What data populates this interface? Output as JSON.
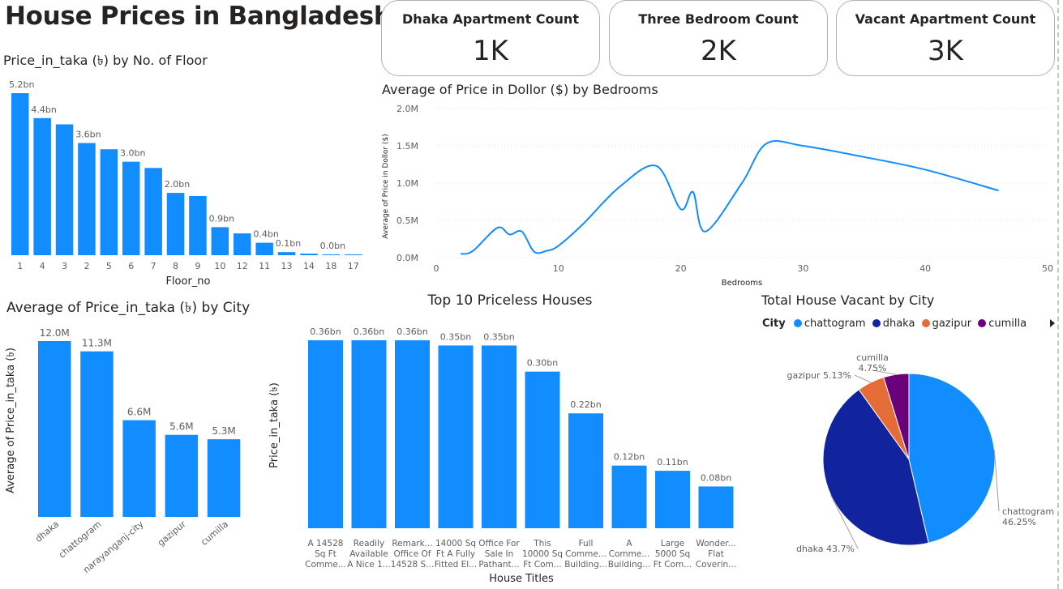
{
  "page": {
    "title": "House Prices in Bangladesh"
  },
  "cards": [
    {
      "label": "Dhaka Apartment Count",
      "value": "1K"
    },
    {
      "label": "Three Bedroom Count",
      "value": "2K"
    },
    {
      "label": "Vacant Apartment Count",
      "value": "3K"
    }
  ],
  "colors": {
    "bar": "#118DFF",
    "line": "#118DFF",
    "chattogram": "#118DFF",
    "dhaka": "#12239E",
    "gazipur": "#E66C37",
    "cumilla": "#6B007B",
    "text": "#252423",
    "axis": "#605E5C"
  },
  "chart_data": [
    {
      "id": "floor",
      "type": "bar",
      "title": "Price_in_taka (৳) by No. of Floor",
      "xlabel": "Floor_no",
      "ylabel": "",
      "categories": [
        "1",
        "4",
        "3",
        "2",
        "5",
        "6",
        "7",
        "8",
        "9",
        "10",
        "12",
        "11",
        "13",
        "14",
        "18",
        "17"
      ],
      "values": [
        5.2,
        4.4,
        4.2,
        3.6,
        3.4,
        3.0,
        2.8,
        2.0,
        1.9,
        0.9,
        0.7,
        0.4,
        0.1,
        0.05,
        0.02,
        0.02
      ],
      "unit": "bn",
      "data_labels": [
        "5.2bn",
        "4.4bn",
        "",
        "3.6bn",
        "",
        "3.0bn",
        "",
        "2.0bn",
        "",
        "0.9bn",
        "",
        "0.4bn",
        "0.1bn",
        "",
        "0.0bn",
        ""
      ],
      "ylim": [
        0,
        5.2
      ]
    },
    {
      "id": "bedrooms",
      "type": "line",
      "title": "Average of Price in Dollor ($) by Bedrooms",
      "xlabel": "Bedrooms",
      "ylabel": "Average of Price in Dollor ($)",
      "xlim": [
        0,
        50
      ],
      "ylim": [
        0,
        2000000
      ],
      "xticks": [
        "0",
        "10",
        "20",
        "30",
        "40",
        "50"
      ],
      "yticks": [
        "0.0M",
        "0.5M",
        "1.0M",
        "1.5M",
        "2.0M"
      ],
      "x": [
        2,
        3,
        5,
        6,
        7,
        8,
        9,
        10,
        12,
        15,
        18,
        20,
        21,
        22,
        25,
        27,
        30,
        35,
        40,
        46
      ],
      "y": [
        50000,
        90000,
        400000,
        310000,
        350000,
        80000,
        90000,
        160000,
        450000,
        950000,
        1230000,
        650000,
        880000,
        350000,
        1000000,
        1530000,
        1500000,
        1350000,
        1180000,
        900000
      ]
    },
    {
      "id": "city",
      "type": "bar",
      "title": "Average of Price_in_taka (৳) by City",
      "xlabel": "",
      "ylabel": "Average of Price_in_taka (৳)",
      "categories": [
        "dhaka",
        "chattogram",
        "narayanganj-city",
        "gazipur",
        "cumilla"
      ],
      "values": [
        12.0,
        11.3,
        6.6,
        5.6,
        5.3
      ],
      "data_labels": [
        "12.0M",
        "11.3M",
        "6.6M",
        "5.6M",
        "5.3M"
      ],
      "ylim": [
        0,
        12.0
      ]
    },
    {
      "id": "top10",
      "type": "bar",
      "title": "Top 10 Priceless Houses",
      "xlabel": "House Titles",
      "ylabel": "Price_in_taka (৳)",
      "categories": [
        [
          "A 14528",
          "Sq Ft",
          "Comme..."
        ],
        [
          "Readily",
          "Available",
          "A Nice 1..."
        ],
        [
          "Remark...",
          "Office Of",
          "14528 S..."
        ],
        [
          "14000 Sq",
          "Ft A Fully",
          "Fitted El..."
        ],
        [
          "Office For",
          "Sale In",
          "Pathant..."
        ],
        [
          "This",
          "10000 Sq",
          "Ft Com..."
        ],
        [
          "Full",
          "Comme...",
          "Building..."
        ],
        [
          "A",
          "Comme...",
          "Building..."
        ],
        [
          "Large",
          "5000 Sq",
          "Ft Com..."
        ],
        [
          "Wonder...",
          "Flat",
          "Coverin..."
        ]
      ],
      "values": [
        0.36,
        0.36,
        0.36,
        0.35,
        0.35,
        0.3,
        0.22,
        0.12,
        0.11,
        0.08
      ],
      "data_labels": [
        "0.36bn",
        "0.36bn",
        "0.36bn",
        "0.35bn",
        "0.35bn",
        "0.30bn",
        "0.22bn",
        "0.12bn",
        "0.11bn",
        "0.08bn"
      ],
      "ylim": [
        0,
        0.36
      ]
    },
    {
      "id": "vacant",
      "type": "pie",
      "title": "Total House Vacant by City",
      "legend_title": "City",
      "labels": [
        "chattogram",
        "dhaka",
        "gazipur",
        "cumilla"
      ],
      "values": [
        46.25,
        43.7,
        5.13,
        4.75
      ],
      "data_labels": [
        "chattogram\n46.25%",
        "dhaka 43.7%",
        "gazipur 5.13%",
        "cumilla\n4.75%"
      ]
    }
  ]
}
